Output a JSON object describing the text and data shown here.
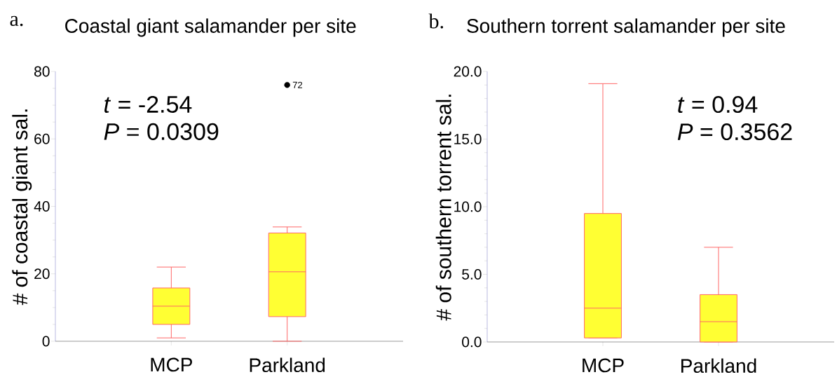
{
  "chart_data": [
    {
      "type": "box",
      "title": "Coastal giant salamander per site",
      "ylabel": "# of coastal giant sal.",
      "categories": [
        "MCP",
        "Parkland"
      ],
      "ylim": [
        0,
        80
      ],
      "yticks": [
        0,
        20,
        40,
        60,
        80
      ],
      "color": "#ffff33",
      "boxes": [
        {
          "low": 1,
          "q1": 5,
          "median": 10.4,
          "q3": 15.8,
          "high": 22
        },
        {
          "low": 0,
          "q1": 7.3,
          "median": 20.6,
          "q3": 32.1,
          "high": 33.9,
          "outliers": [
            76
          ]
        }
      ],
      "annotations": [
        "a.",
        "*t* = -2.54",
        "*P* = 0.0309",
        "72"
      ]
    },
    {
      "type": "box",
      "title": "Southern torrent salamander per site",
      "ylabel": "# of southern torrent sal.",
      "categories": [
        "MCP",
        "Parkland"
      ],
      "ylim": [
        0,
        20
      ],
      "yticks": [
        {
          "value": 0,
          "label": "0.0"
        },
        {
          "value": 5,
          "label": "5.0"
        },
        {
          "value": 10,
          "label": "10.0"
        },
        {
          "value": 15,
          "label": "15.0"
        },
        {
          "value": 20,
          "label": "20.0"
        }
      ],
      "color": "#ffff33",
      "boxes": [
        {
          "low": 0.3,
          "q1": 0.3,
          "median": 2.5,
          "q3": 9.5,
          "high": 19.1
        },
        {
          "low": 0,
          "q1": 0,
          "median": 1.5,
          "q3": 3.5,
          "high": 7
        }
      ],
      "annotations": [
        "b.",
        "*t* = 0.94",
        "*P* = 0.3562"
      ]
    }
  ]
}
